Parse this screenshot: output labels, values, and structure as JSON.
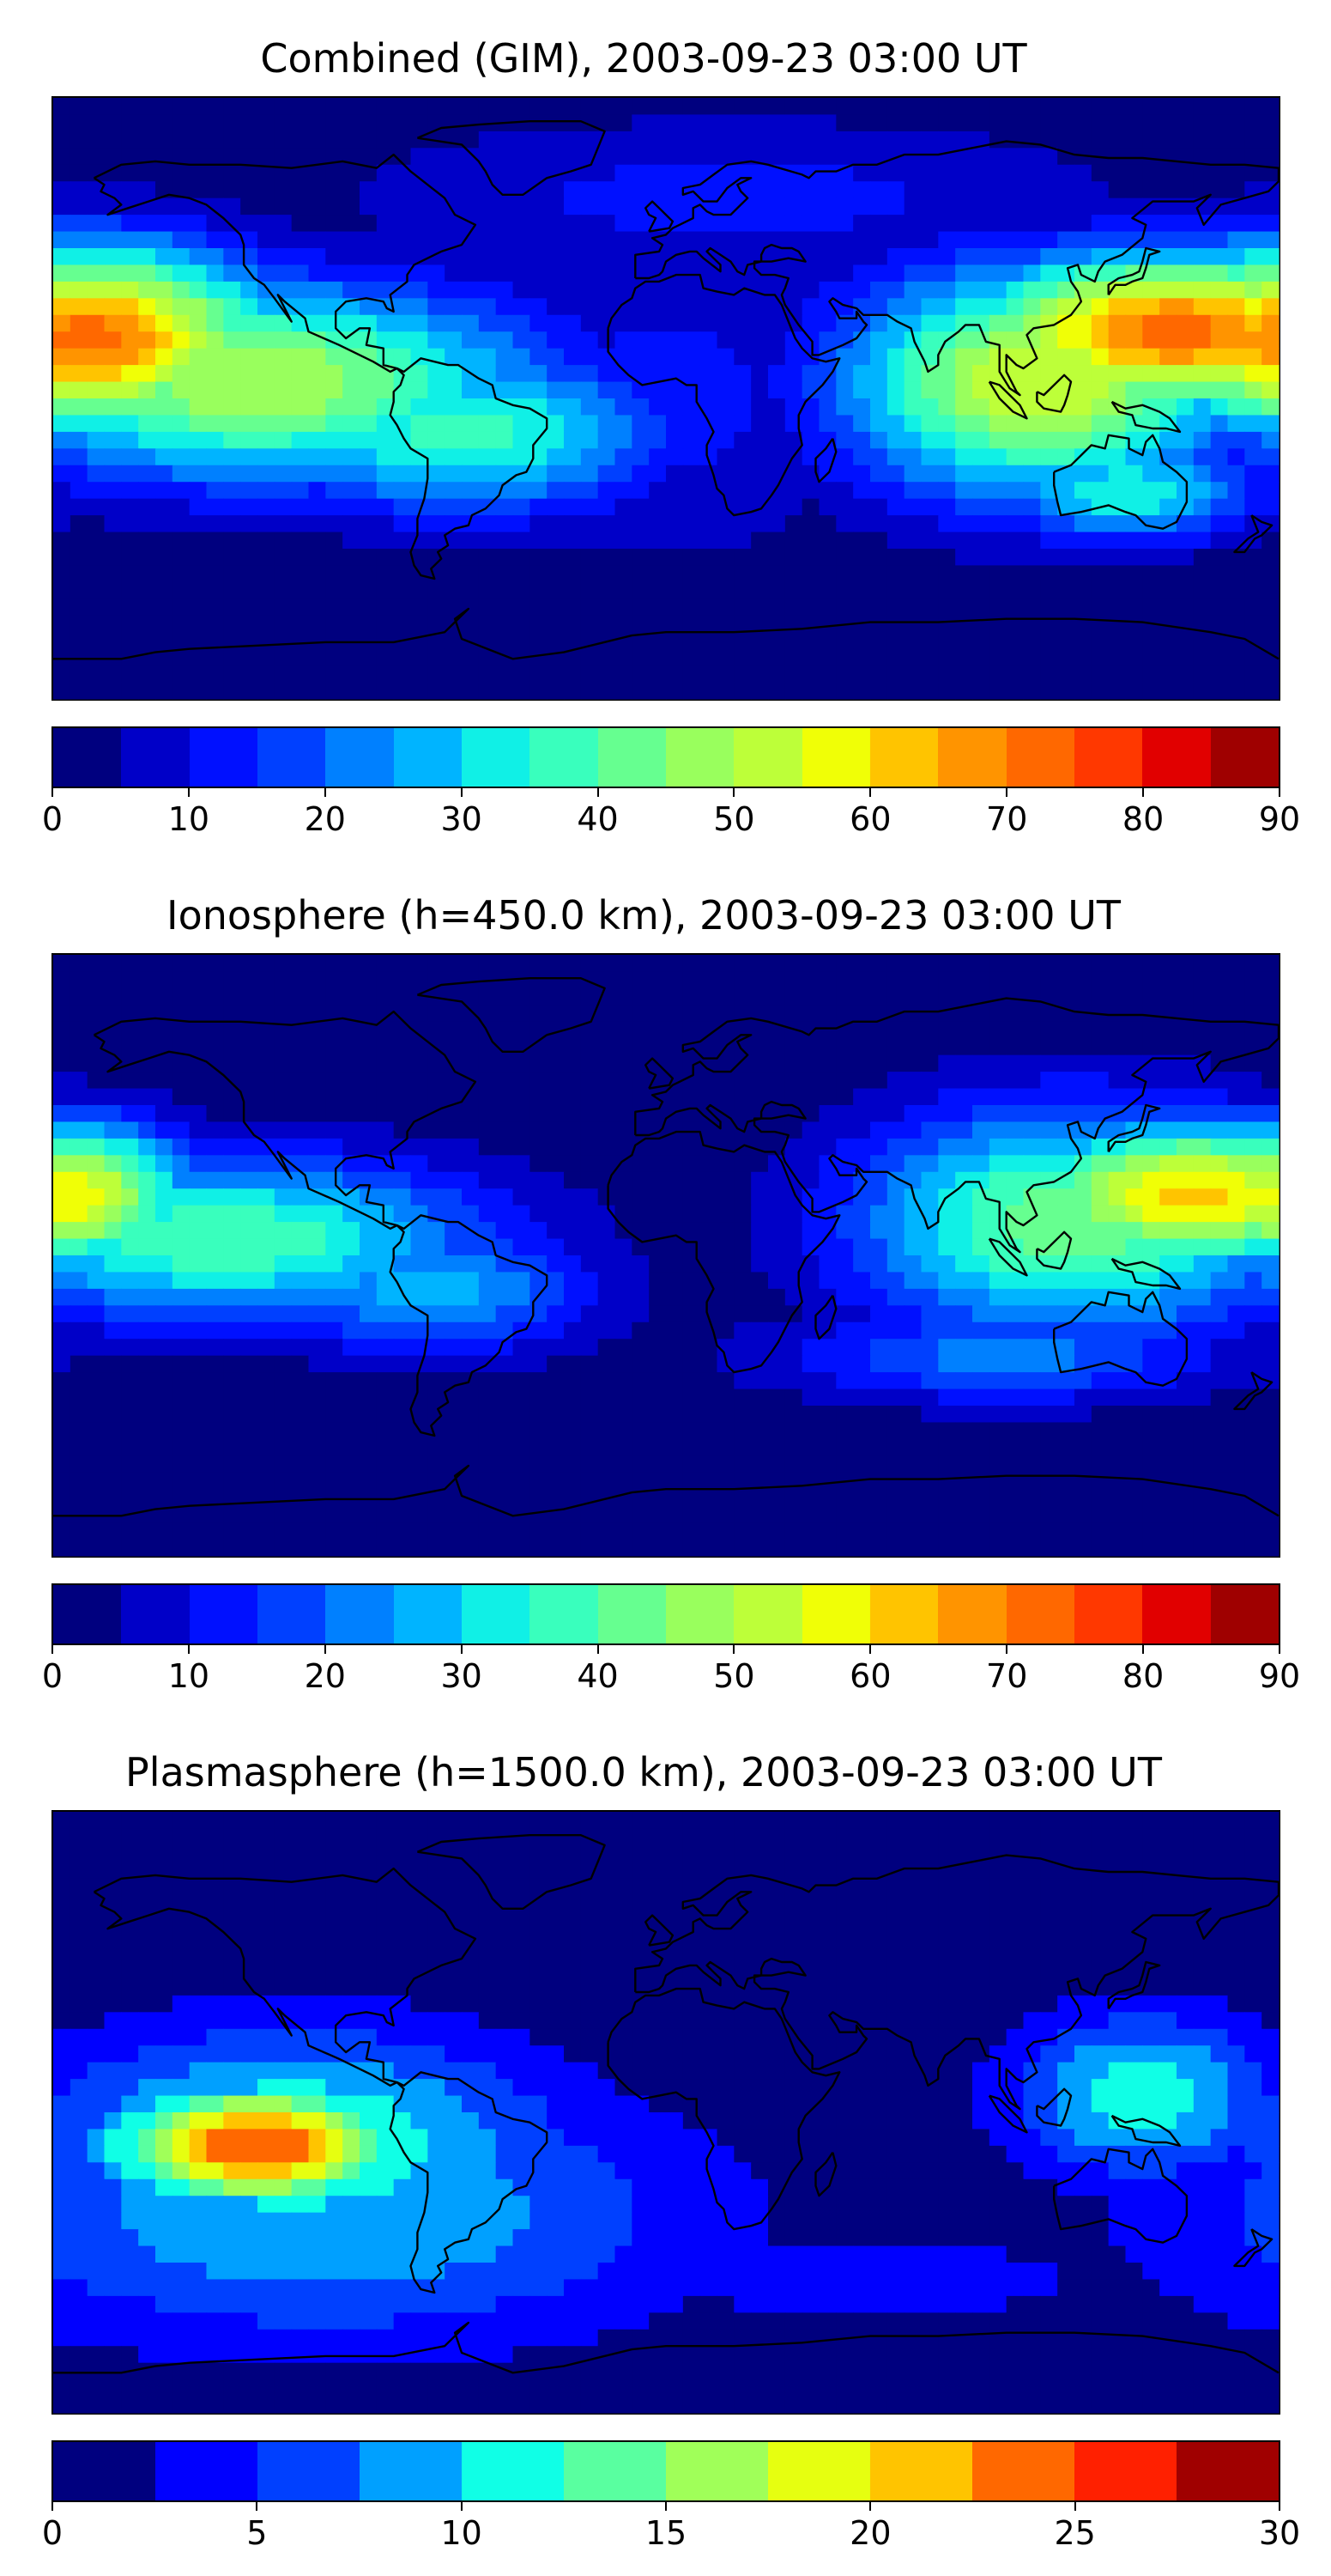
{
  "chart_data": [
    {
      "type": "heatmap",
      "title": "Combined (GIM), 2003-09-23 03:00 UT",
      "colorbar": {
        "min": 0,
        "max": 90,
        "levels": [
          0,
          5,
          10,
          15,
          20,
          25,
          30,
          35,
          40,
          45,
          50,
          55,
          60,
          65,
          70,
          75,
          80,
          85,
          90
        ],
        "ticks": [
          0,
          10,
          20,
          30,
          40,
          50,
          60,
          70,
          80,
          90
        ],
        "colors": [
          "#00007f",
          "#0000c8",
          "#0010ff",
          "#0040ff",
          "#0080ff",
          "#00b4ff",
          "#10f0e6",
          "#39ffbd",
          "#66ff90",
          "#99ff5d",
          "#bdff39",
          "#f0ff06",
          "#ffc400",
          "#ff9400",
          "#ff6800",
          "#ff3800",
          "#e10000",
          "#9f0000"
        ]
      },
      "map": {
        "type": "contourf",
        "lon_range": [
          -180,
          180
        ],
        "lat_range": [
          -90,
          90
        ],
        "coastlines": true
      },
      "features": [
        {
          "lon": -170,
          "lat": 18,
          "rx": 55,
          "ry": 28,
          "value": 72
        },
        {
          "lon": -120,
          "lat": 5,
          "rx": 85,
          "ry": 30,
          "value": 50
        },
        {
          "lon": -60,
          "lat": -10,
          "rx": 60,
          "ry": 25,
          "value": 38
        },
        {
          "lon": 150,
          "lat": 20,
          "rx": 65,
          "ry": 24,
          "value": 72
        },
        {
          "lon": 110,
          "lat": 5,
          "rx": 60,
          "ry": 35,
          "value": 55
        },
        {
          "lon": 135,
          "lat": -28,
          "rx": 40,
          "ry": 15,
          "value": 35
        },
        {
          "lon": 0,
          "lat": 0,
          "rx": 60,
          "ry": 50,
          "value": 12
        },
        {
          "lon": 20,
          "lat": 60,
          "rx": 120,
          "ry": 25,
          "value": 12
        }
      ]
    },
    {
      "type": "heatmap",
      "title": "Ionosphere  (h=450.0 km), 2003-09-23 03:00 UT",
      "colorbar": {
        "min": 0,
        "max": 90,
        "levels": [
          0,
          5,
          10,
          15,
          20,
          25,
          30,
          35,
          40,
          45,
          50,
          55,
          60,
          65,
          70,
          75,
          80,
          85,
          90
        ],
        "ticks": [
          0,
          10,
          20,
          30,
          40,
          50,
          60,
          70,
          80,
          90
        ],
        "colors": [
          "#00007f",
          "#0000c8",
          "#0010ff",
          "#0040ff",
          "#0080ff",
          "#00b4ff",
          "#10f0e6",
          "#39ffbd",
          "#66ff90",
          "#99ff5d",
          "#bdff39",
          "#f0ff06",
          "#ffc400",
          "#ff9400",
          "#ff6800",
          "#ff3800",
          "#e10000",
          "#9f0000"
        ]
      },
      "map": {
        "type": "contourf",
        "lon_range": [
          -180,
          180
        ],
        "lat_range": [
          -90,
          90
        ],
        "coastlines": true
      },
      "features": [
        {
          "lon": -175,
          "lat": 18,
          "rx": 35,
          "ry": 22,
          "value": 60
        },
        {
          "lon": -130,
          "lat": 5,
          "rx": 80,
          "ry": 25,
          "value": 40
        },
        {
          "lon": -70,
          "lat": -10,
          "rx": 50,
          "ry": 20,
          "value": 28
        },
        {
          "lon": 155,
          "lat": 18,
          "rx": 55,
          "ry": 22,
          "value": 62
        },
        {
          "lon": 120,
          "lat": 10,
          "rx": 65,
          "ry": 35,
          "value": 45
        },
        {
          "lon": 100,
          "lat": -30,
          "rx": 70,
          "ry": 15,
          "value": 22
        },
        {
          "lon": 0,
          "lat": 0,
          "rx": 70,
          "ry": 70,
          "value": 3
        }
      ]
    },
    {
      "type": "heatmap",
      "title": "Plasmasphere (h=1500.0 km), 2003-09-23 03:00 UT",
      "colorbar": {
        "min": 0,
        "max": 30,
        "levels": [
          0,
          2.5,
          5,
          7.5,
          10,
          12.5,
          15,
          17.5,
          20,
          22.5,
          25,
          27.5,
          30
        ],
        "ticks": [
          0,
          5,
          10,
          15,
          20,
          25,
          30
        ],
        "colors": [
          "#00007f",
          "#0000ff",
          "#0040ff",
          "#00a0ff",
          "#10ffe6",
          "#59ffa0",
          "#a0ff59",
          "#e6ff10",
          "#ffc400",
          "#ff6800",
          "#ff2000",
          "#a00000"
        ]
      },
      "map": {
        "type": "contourf",
        "lon_range": [
          -180,
          180
        ],
        "lat_range": [
          -90,
          90
        ],
        "coastlines": true
      },
      "features": [
        {
          "lon": -120,
          "lat": -10,
          "rx": 45,
          "ry": 18,
          "value": 25
        },
        {
          "lon": -110,
          "lat": -10,
          "rx": 80,
          "ry": 35,
          "value": 13
        },
        {
          "lon": -100,
          "lat": -30,
          "rx": 110,
          "ry": 40,
          "value": 10
        },
        {
          "lon": 140,
          "lat": 5,
          "rx": 40,
          "ry": 25,
          "value": 12
        },
        {
          "lon": 0,
          "lat": 60,
          "rx": 180,
          "ry": 25,
          "value": 2
        },
        {
          "lon": 60,
          "lat": -50,
          "rx": 80,
          "ry": 15,
          "value": 4
        }
      ]
    }
  ]
}
